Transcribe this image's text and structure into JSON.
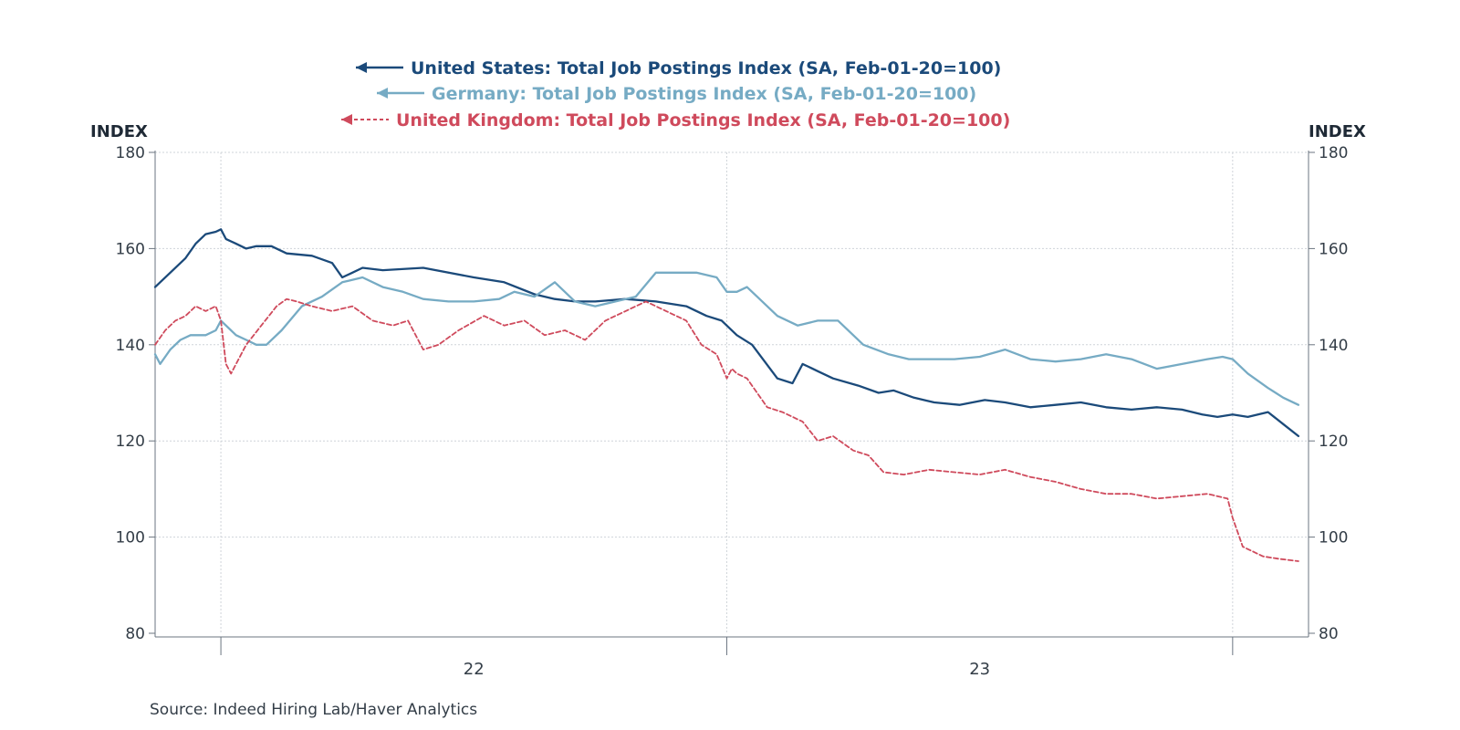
{
  "chart_data": {
    "type": "line",
    "title": "",
    "source": "Source:  Indeed Hiring Lab/Haver Analytics",
    "ylabel_left": "INDEX",
    "ylabel_right": "INDEX",
    "ylim": [
      80,
      180
    ],
    "yticks": [
      80,
      100,
      120,
      140,
      160,
      180
    ],
    "grid": true,
    "legend_position": "top-center",
    "x_domain": [
      2021.87,
      2024.15
    ],
    "x_major_ticks": [
      2022.0,
      2023.0,
      2024.0
    ],
    "x_tick_labels": [
      {
        "label": "22",
        "x": 2022.5
      },
      {
        "label": "23",
        "x": 2023.5
      }
    ],
    "series": [
      {
        "name": "United States: Total Job Postings Index (SA, Feb-01-20=100)",
        "color": "#1b4a7a",
        "style": "solid",
        "x": [
          2021.87,
          2021.9,
          2021.93,
          2021.95,
          2021.97,
          2021.99,
          2022.0,
          2022.01,
          2022.03,
          2022.05,
          2022.07,
          2022.1,
          2022.13,
          2022.18,
          2022.22,
          2022.24,
          2022.26,
          2022.28,
          2022.32,
          2022.4,
          2022.5,
          2022.56,
          2022.62,
          2022.66,
          2022.7,
          2022.74,
          2022.8,
          2022.86,
          2022.92,
          2022.96,
          2022.99,
          2023.02,
          2023.05,
          2023.1,
          2023.13,
          2023.15,
          2023.16,
          2023.18,
          2023.21,
          2023.26,
          2023.3,
          2023.33,
          2023.37,
          2023.41,
          2023.46,
          2023.51,
          2023.55,
          2023.6,
          2023.65,
          2023.7,
          2023.75,
          2023.8,
          2023.85,
          2023.9,
          2023.94,
          2023.97,
          2024.0,
          2024.03,
          2024.07,
          2024.1,
          2024.13
        ],
        "values": [
          152,
          155,
          158,
          161,
          163,
          163.5,
          164,
          162,
          161,
          160,
          160.5,
          160.5,
          159,
          158.5,
          157,
          154,
          155,
          156,
          155.5,
          156,
          154,
          153,
          150.5,
          149.5,
          149,
          149,
          149.5,
          149,
          148,
          146,
          145,
          142,
          140,
          133,
          132,
          136,
          135.5,
          134.5,
          133,
          131.5,
          130,
          130.5,
          129,
          128,
          127.5,
          128.5,
          128,
          127,
          127.5,
          128,
          127,
          126.5,
          127,
          126.5,
          125.5,
          125,
          125.5,
          125,
          126,
          123.5,
          121
        ]
      },
      {
        "name": "Germany: Total Job Postings Index (SA, Feb-01-20=100)",
        "color": "#76abc4",
        "style": "solid",
        "x": [
          2021.87,
          2021.88,
          2021.9,
          2021.92,
          2021.94,
          2021.97,
          2021.99,
          2022.0,
          2022.03,
          2022.05,
          2022.07,
          2022.09,
          2022.12,
          2022.16,
          2022.2,
          2022.24,
          2022.28,
          2022.32,
          2022.36,
          2022.4,
          2022.45,
          2022.5,
          2022.55,
          2022.58,
          2022.62,
          2022.66,
          2022.7,
          2022.74,
          2022.78,
          2022.82,
          2022.86,
          2022.9,
          2022.94,
          2022.98,
          2023.0,
          2023.02,
          2023.04,
          2023.06,
          2023.1,
          2023.14,
          2023.18,
          2023.22,
          2023.27,
          2023.32,
          2023.36,
          2023.4,
          2023.45,
          2023.5,
          2023.55,
          2023.6,
          2023.65,
          2023.7,
          2023.75,
          2023.8,
          2023.85,
          2023.9,
          2023.95,
          2023.98,
          2024.0,
          2024.03,
          2024.07,
          2024.1,
          2024.13
        ],
        "values": [
          138,
          136,
          139,
          141,
          142,
          142,
          143,
          145,
          142,
          141,
          140,
          140,
          143,
          148,
          150,
          153,
          154,
          152,
          151,
          149.5,
          149,
          149,
          149.5,
          151,
          150,
          153,
          149,
          148,
          149,
          150,
          155,
          155,
          155,
          154,
          151,
          151,
          152,
          150,
          146,
          144,
          145,
          145,
          140,
          138,
          137,
          137,
          137,
          137.5,
          139,
          137,
          136.5,
          137,
          138,
          137,
          135,
          136,
          137,
          137.5,
          137,
          134,
          131,
          129,
          127.5
        ]
      },
      {
        "name": "United Kingdom: Total Job Postings Index (SA, Feb-01-20=100)",
        "color": "#cf4a5c",
        "style": "dashed",
        "x": [
          2021.87,
          2021.89,
          2021.91,
          2021.93,
          2021.95,
          2021.97,
          2021.99,
          2022.0,
          2022.01,
          2022.02,
          2022.03,
          2022.05,
          2022.08,
          2022.11,
          2022.13,
          2022.15,
          2022.18,
          2022.22,
          2022.26,
          2022.3,
          2022.34,
          2022.37,
          2022.4,
          2022.43,
          2022.47,
          2022.52,
          2022.56,
          2022.6,
          2022.64,
          2022.68,
          2022.72,
          2022.76,
          2022.8,
          2022.84,
          2022.88,
          2022.92,
          2022.95,
          2022.98,
          2023.0,
          2023.01,
          2023.02,
          2023.04,
          2023.08,
          2023.11,
          2023.15,
          2023.18,
          2023.21,
          2023.25,
          2023.28,
          2023.31,
          2023.35,
          2023.4,
          2023.45,
          2023.5,
          2023.55,
          2023.6,
          2023.65,
          2023.7,
          2023.75,
          2023.8,
          2023.85,
          2023.9,
          2023.95,
          2023.99,
          2024.0,
          2024.01,
          2024.02,
          2024.04,
          2024.06,
          2024.09,
          2024.13
        ],
        "values": [
          140,
          143,
          145,
          146,
          148,
          147,
          148,
          145,
          136,
          134,
          136,
          140,
          144,
          148,
          149.5,
          149,
          148,
          147,
          148,
          145,
          144,
          145,
          139,
          140,
          143,
          146,
          144,
          145,
          142,
          143,
          141,
          145,
          147,
          149,
          147,
          145,
          140,
          138,
          133,
          135,
          134,
          133,
          127,
          126,
          124,
          120,
          121,
          118,
          117,
          113.5,
          113,
          114,
          113.5,
          113,
          114,
          112.5,
          111.5,
          110,
          109,
          109,
          108,
          108.5,
          109,
          108,
          104,
          101,
          98,
          97,
          96,
          95.5,
          95
        ]
      }
    ]
  }
}
